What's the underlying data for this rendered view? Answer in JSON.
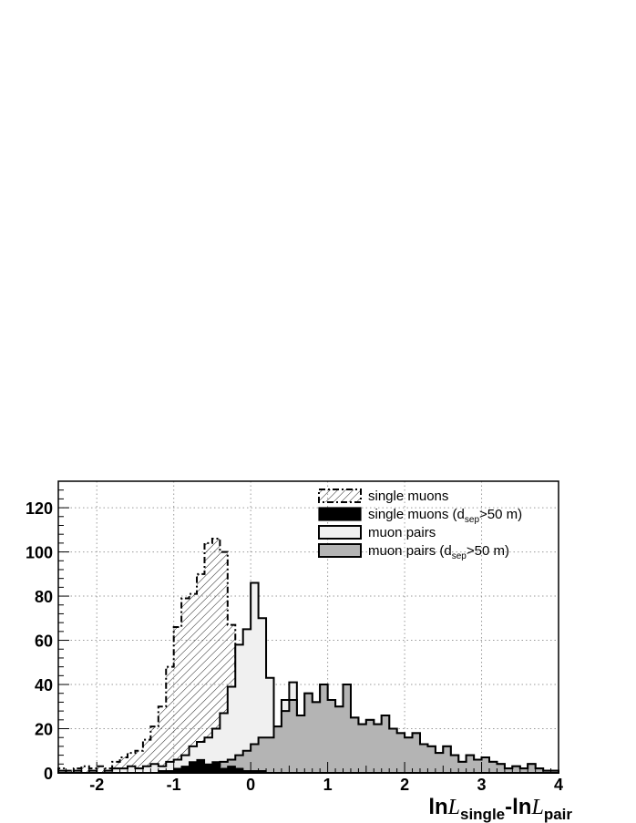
{
  "chart_data": {
    "type": "histogram",
    "title": "",
    "xlabel": {
      "prefix1": "ln",
      "L1": "L",
      "sub1": "single",
      "dash": "-",
      "prefix2": "ln",
      "L2": "L",
      "sub2": "pair"
    },
    "ylabel": "",
    "xlim": [
      -2.5,
      4
    ],
    "ylim": [
      0,
      132
    ],
    "grid": true,
    "legend_position": "top-right",
    "x_ticks": [
      -2,
      -1,
      0,
      1,
      2,
      3,
      4
    ],
    "y_ticks": [
      0,
      20,
      40,
      60,
      80,
      100,
      120
    ],
    "bin_start": -2.5,
    "bin_width": 0.1,
    "legend": [
      {
        "key": "single_muons",
        "main": "single muons",
        "sub": "",
        "tail": ""
      },
      {
        "key": "single_muons_dsep",
        "main": "single muons (d",
        "sub": "sep",
        "tail": ">50 m)"
      },
      {
        "key": "muon_pairs",
        "main": "muon pairs",
        "sub": "",
        "tail": ""
      },
      {
        "key": "muon_pairs_dsep",
        "main": "muon pairs (d",
        "sub": "sep",
        "tail": ">50 m)"
      }
    ],
    "series": [
      {
        "key": "single_muons",
        "style": "hatched-dashdot",
        "color": "#000000",
        "values": [
          2,
          1,
          2,
          3,
          2,
          3,
          2,
          5,
          7,
          9,
          10,
          15,
          21,
          30,
          48,
          66,
          79,
          81,
          90,
          104,
          106,
          100,
          67,
          45,
          2,
          0,
          1,
          1,
          1,
          0,
          0,
          0,
          0,
          0,
          0,
          0,
          0,
          0,
          0,
          0,
          0,
          0,
          0,
          0,
          0,
          0,
          0,
          0,
          0,
          0,
          0,
          0,
          0,
          0,
          0,
          0,
          0,
          0,
          0,
          0,
          0,
          0,
          0,
          0,
          0
        ]
      },
      {
        "key": "single_muons_dsep",
        "style": "solid-black",
        "color": "#000000",
        "values": [
          0,
          0,
          0,
          0,
          0,
          0,
          0,
          0,
          0,
          0,
          0,
          0,
          0,
          1,
          1,
          2,
          3,
          5,
          6,
          4,
          5,
          2,
          3,
          2,
          1,
          1,
          1,
          0,
          0,
          0,
          0,
          0,
          0,
          0,
          0,
          0,
          0,
          0,
          0,
          0,
          0,
          0,
          0,
          0,
          0,
          0,
          0,
          0,
          0,
          0,
          0,
          0,
          0,
          0,
          0,
          0,
          0,
          0,
          0,
          0,
          0,
          0,
          0,
          0,
          0
        ]
      },
      {
        "key": "muon_pairs",
        "style": "light-gray",
        "color": "#f0f0f0",
        "values": [
          1,
          0,
          1,
          0,
          1,
          0,
          1,
          2,
          2,
          3,
          2,
          3,
          4,
          3,
          5,
          6,
          8,
          12,
          14,
          16,
          20,
          27,
          39,
          58,
          65,
          86,
          70,
          43,
          21,
          33,
          41,
          26,
          36,
          32,
          40,
          33,
          30,
          40,
          25,
          22,
          24,
          22,
          26,
          20,
          18,
          16,
          18,
          13,
          12,
          9,
          12,
          8,
          5,
          8,
          6,
          7,
          5,
          4,
          2,
          3,
          2,
          4,
          2,
          1,
          1
        ]
      },
      {
        "key": "muon_pairs_dsep",
        "style": "dark-gray",
        "color": "#b4b4b4",
        "values": [
          0,
          0,
          0,
          0,
          0,
          0,
          0,
          0,
          0,
          0,
          0,
          0,
          0,
          0,
          0,
          0,
          0,
          1,
          1,
          2,
          3,
          5,
          6,
          8,
          10,
          13,
          16,
          16,
          21,
          28,
          33,
          26,
          36,
          32,
          40,
          33,
          30,
          40,
          25,
          22,
          24,
          22,
          26,
          20,
          18,
          16,
          18,
          13,
          12,
          9,
          12,
          8,
          5,
          8,
          6,
          7,
          5,
          4,
          2,
          3,
          2,
          4,
          2,
          1,
          1
        ]
      }
    ],
    "colors": {
      "frame": "#000000",
      "grid": "#9a9a9a",
      "hatch": "#000000",
      "light_fill": "#f0f0f0",
      "dark_fill": "#b4b4b4"
    }
  }
}
